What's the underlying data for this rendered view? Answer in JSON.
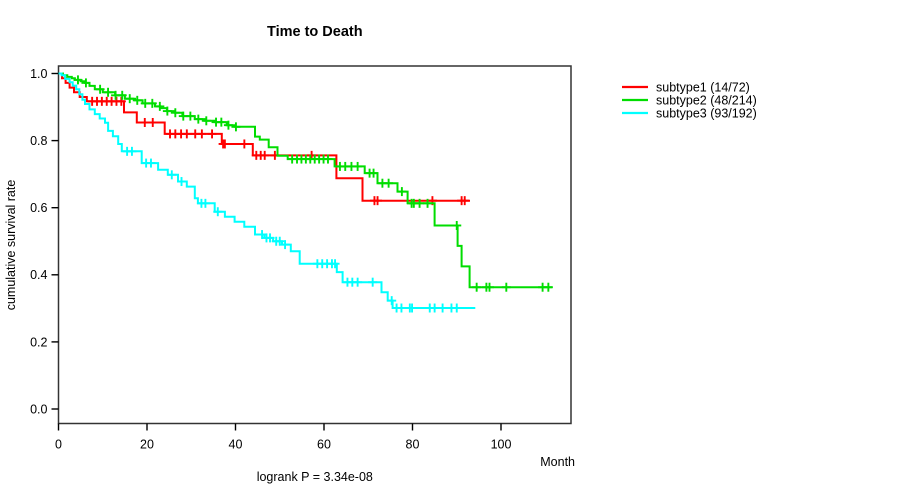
{
  "chart_data": {
    "type": "line",
    "variant": "kaplan-meier-step",
    "title": "Time to Death",
    "xlabel": "Month",
    "ylabel": "cumulative survival rate",
    "footnote": "logrank P = 3.34e-08",
    "xlim": [
      0,
      116
    ],
    "ylim": [
      0,
      1
    ],
    "xticks": [
      0,
      20,
      40,
      60,
      80,
      100
    ],
    "yticks": [
      "0.0",
      "0.2",
      "0.4",
      "0.6",
      "0.8",
      "1.0"
    ],
    "grid": false,
    "legend_position": "right-outside",
    "series": [
      {
        "name": "subtype1 (14/72)",
        "color": "#ff0000",
        "end_time": 93.0,
        "steps": [
          [
            0,
            1.0
          ],
          [
            0.8,
            0.986
          ],
          [
            1.6,
            0.972
          ],
          [
            2.5,
            0.958
          ],
          [
            3.5,
            0.944
          ],
          [
            4.8,
            0.93
          ],
          [
            6.4,
            0.917
          ],
          [
            14.8,
            0.884
          ],
          [
            17.7,
            0.854
          ],
          [
            24.0,
            0.82
          ],
          [
            36.9,
            0.79
          ],
          [
            43.9,
            0.756
          ],
          [
            62.8,
            0.688
          ],
          [
            68.7,
            0.621
          ]
        ],
        "censors": [
          [
            7.6,
            0.917
          ],
          [
            8.7,
            0.917
          ],
          [
            9.8,
            0.917
          ],
          [
            10.9,
            0.917
          ],
          [
            12.0,
            0.917
          ],
          [
            13.1,
            0.917
          ],
          [
            14.2,
            0.917
          ],
          [
            19.5,
            0.854
          ],
          [
            21.3,
            0.854
          ],
          [
            25.2,
            0.82
          ],
          [
            26.4,
            0.82
          ],
          [
            27.7,
            0.82
          ],
          [
            29.0,
            0.82
          ],
          [
            30.9,
            0.82
          ],
          [
            32.4,
            0.82
          ],
          [
            34.7,
            0.82
          ],
          [
            37.2,
            0.79
          ],
          [
            37.6,
            0.79
          ],
          [
            42.0,
            0.79
          ],
          [
            44.7,
            0.756
          ],
          [
            45.7,
            0.756
          ],
          [
            46.6,
            0.756
          ],
          [
            48.9,
            0.756
          ],
          [
            57.2,
            0.756
          ],
          [
            71.4,
            0.621
          ],
          [
            72.1,
            0.621
          ],
          [
            84.5,
            0.621
          ],
          [
            91.1,
            0.621
          ],
          [
            91.8,
            0.621
          ]
        ]
      },
      {
        "name": "subtype2 (48/214)",
        "color": "#00dd00",
        "end_time": 111.6,
        "steps": [
          [
            0,
            1.0
          ],
          [
            1.0,
            0.995
          ],
          [
            2.0,
            0.99
          ],
          [
            3.0,
            0.986
          ],
          [
            3.7,
            0.981
          ],
          [
            5.0,
            0.977
          ],
          [
            6.0,
            0.972
          ],
          [
            7.0,
            0.963
          ],
          [
            8.2,
            0.953
          ],
          [
            10.0,
            0.944
          ],
          [
            12.8,
            0.935
          ],
          [
            15.0,
            0.925
          ],
          [
            17.3,
            0.92
          ],
          [
            19.0,
            0.911
          ],
          [
            21.8,
            0.902
          ],
          [
            23.0,
            0.897
          ],
          [
            24.5,
            0.888
          ],
          [
            26.3,
            0.883
          ],
          [
            28.0,
            0.873
          ],
          [
            30.8,
            0.864
          ],
          [
            33.0,
            0.859
          ],
          [
            35.3,
            0.855
          ],
          [
            38.0,
            0.846
          ],
          [
            39.8,
            0.841
          ],
          [
            44.4,
            0.812
          ],
          [
            45.5,
            0.803
          ],
          [
            47.5,
            0.78
          ],
          [
            49.5,
            0.755
          ],
          [
            51.8,
            0.745
          ],
          [
            62.4,
            0.723
          ],
          [
            69.2,
            0.703
          ],
          [
            72.1,
            0.673
          ],
          [
            76.6,
            0.648
          ],
          [
            78.9,
            0.613
          ],
          [
            85.0,
            0.547
          ],
          [
            90.2,
            0.486
          ],
          [
            91.1,
            0.425
          ],
          [
            92.9,
            0.363
          ]
        ],
        "censors": [
          [
            4.4,
            0.981
          ],
          [
            6.2,
            0.972
          ],
          [
            9.4,
            0.953
          ],
          [
            11.2,
            0.944
          ],
          [
            12.9,
            0.935
          ],
          [
            14.4,
            0.935
          ],
          [
            16.1,
            0.925
          ],
          [
            17.8,
            0.92
          ],
          [
            19.6,
            0.911
          ],
          [
            21.2,
            0.911
          ],
          [
            22.9,
            0.902
          ],
          [
            24.6,
            0.888
          ],
          [
            26.4,
            0.883
          ],
          [
            28.2,
            0.873
          ],
          [
            29.8,
            0.873
          ],
          [
            31.6,
            0.864
          ],
          [
            33.4,
            0.859
          ],
          [
            35.6,
            0.855
          ],
          [
            36.8,
            0.855
          ],
          [
            38.4,
            0.846
          ],
          [
            40.1,
            0.841
          ],
          [
            52.8,
            0.745
          ],
          [
            53.9,
            0.745
          ],
          [
            54.9,
            0.745
          ],
          [
            55.9,
            0.745
          ],
          [
            56.9,
            0.745
          ],
          [
            57.9,
            0.745
          ],
          [
            58.9,
            0.745
          ],
          [
            59.9,
            0.745
          ],
          [
            60.9,
            0.745
          ],
          [
            63.6,
            0.723
          ],
          [
            64.8,
            0.723
          ],
          [
            66.2,
            0.723
          ],
          [
            67.6,
            0.723
          ],
          [
            70.3,
            0.703
          ],
          [
            71.2,
            0.703
          ],
          [
            73.2,
            0.673
          ],
          [
            74.6,
            0.673
          ],
          [
            77.6,
            0.648
          ],
          [
            79.8,
            0.613
          ],
          [
            80.3,
            0.613
          ],
          [
            81.6,
            0.613
          ],
          [
            83.4,
            0.613
          ],
          [
            90.0,
            0.547
          ],
          [
            94.5,
            0.363
          ],
          [
            96.7,
            0.363
          ],
          [
            97.4,
            0.363
          ],
          [
            101.2,
            0.363
          ],
          [
            109.4,
            0.363
          ],
          [
            110.7,
            0.363
          ]
        ]
      },
      {
        "name": "subtype3 (93/192)",
        "color": "#00ffff",
        "end_time": 94.2,
        "steps": [
          [
            0,
            1.0
          ],
          [
            0.7,
            0.995
          ],
          [
            1.5,
            0.984
          ],
          [
            2.5,
            0.974
          ],
          [
            3.2,
            0.964
          ],
          [
            4.0,
            0.953
          ],
          [
            4.7,
            0.938
          ],
          [
            5.4,
            0.922
          ],
          [
            6.0,
            0.909
          ],
          [
            7.0,
            0.893
          ],
          [
            8.2,
            0.879
          ],
          [
            9.3,
            0.866
          ],
          [
            10.5,
            0.853
          ],
          [
            11.2,
            0.829
          ],
          [
            12.3,
            0.813
          ],
          [
            13.5,
            0.79
          ],
          [
            14.3,
            0.768
          ],
          [
            18.8,
            0.733
          ],
          [
            22.5,
            0.713
          ],
          [
            24.7,
            0.698
          ],
          [
            27.0,
            0.678
          ],
          [
            29.0,
            0.663
          ],
          [
            30.8,
            0.628
          ],
          [
            31.5,
            0.613
          ],
          [
            35.3,
            0.588
          ],
          [
            37.6,
            0.573
          ],
          [
            39.8,
            0.558
          ],
          [
            42.0,
            0.543
          ],
          [
            44.4,
            0.52
          ],
          [
            46.5,
            0.51
          ],
          [
            48.5,
            0.5
          ],
          [
            50.5,
            0.49
          ],
          [
            52.5,
            0.47
          ],
          [
            54.5,
            0.433
          ],
          [
            62.9,
            0.408
          ],
          [
            64.2,
            0.378
          ],
          [
            73.0,
            0.348
          ],
          [
            74.4,
            0.323
          ],
          [
            75.5,
            0.301
          ]
        ],
        "censors": [
          [
            15.5,
            0.768
          ],
          [
            16.6,
            0.768
          ],
          [
            19.8,
            0.733
          ],
          [
            20.9,
            0.733
          ],
          [
            25.6,
            0.698
          ],
          [
            27.8,
            0.678
          ],
          [
            32.3,
            0.613
          ],
          [
            33.2,
            0.613
          ],
          [
            36.0,
            0.588
          ],
          [
            46.0,
            0.52
          ],
          [
            47.0,
            0.51
          ],
          [
            47.8,
            0.51
          ],
          [
            49.2,
            0.5
          ],
          [
            50.0,
            0.5
          ],
          [
            51.2,
            0.49
          ],
          [
            58.5,
            0.433
          ],
          [
            59.6,
            0.433
          ],
          [
            60.7,
            0.433
          ],
          [
            61.8,
            0.433
          ],
          [
            62.5,
            0.433
          ],
          [
            65.3,
            0.378
          ],
          [
            66.4,
            0.378
          ],
          [
            67.6,
            0.378
          ],
          [
            71.0,
            0.378
          ],
          [
            75.3,
            0.323
          ],
          [
            76.4,
            0.301
          ],
          [
            77.5,
            0.301
          ],
          [
            79.4,
            0.301
          ],
          [
            79.9,
            0.301
          ],
          [
            83.9,
            0.301
          ],
          [
            85.0,
            0.301
          ],
          [
            86.8,
            0.301
          ],
          [
            88.8,
            0.301
          ],
          [
            90.0,
            0.301
          ]
        ]
      }
    ]
  }
}
